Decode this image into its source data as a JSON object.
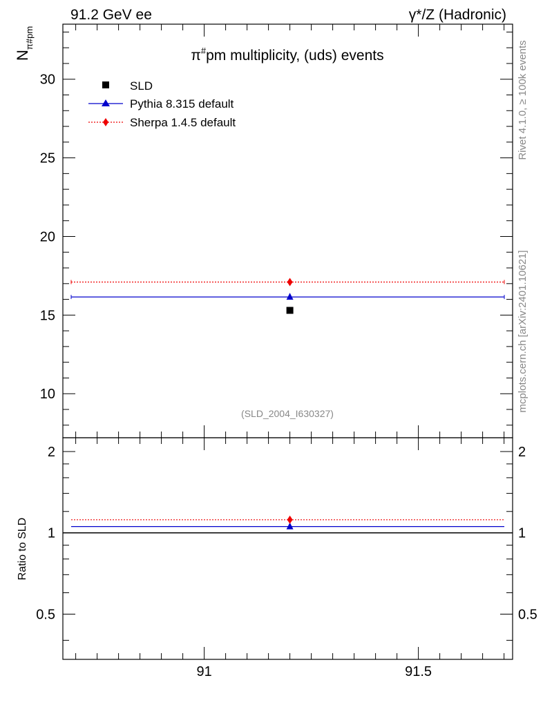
{
  "header": {
    "left": "91.2 GeV ee",
    "right": "γ*/Z (Hadronic)"
  },
  "side_labels": {
    "rivet": "Rivet 4.1.0, ≥ 100k events",
    "mcplots": "mcplots.cern.ch [arXiv:2401.10621]"
  },
  "chart_data": [
    {
      "type": "scatter",
      "panel": "main",
      "title": "π#pm multiplicity, (uds) events",
      "title_parts": {
        "pi": "π",
        "sup": "#",
        "rest": "pm multiplicity, (uds) events"
      },
      "ylabel": "N",
      "ylabel_sub": "π#pm",
      "xlim": [
        90.67,
        91.72
      ],
      "ylim": [
        7.2,
        33.5
      ],
      "yticks": [
        10,
        15,
        20,
        25,
        30
      ],
      "annotation": "(SLD_2004_I630327)",
      "legend_position": "top-left",
      "series": [
        {
          "name": "SLD",
          "marker": "square",
          "color": "#000000",
          "x": 91.2,
          "y": 15.3
        },
        {
          "name": "Pythia 8.315 default",
          "marker": "triangle",
          "color": "#0000cc",
          "line": "solid",
          "x": 91.2,
          "y": 16.15,
          "xmin": 90.67,
          "xmax": 91.72
        },
        {
          "name": "Sherpa 1.4.5 default",
          "marker": "diamond",
          "color": "#ee0000",
          "line": "dotted",
          "x": 91.2,
          "y": 17.1,
          "xmin": 90.67,
          "xmax": 91.72
        }
      ]
    },
    {
      "type": "line",
      "panel": "ratio",
      "ylabel": "Ratio to SLD",
      "xlabel": "",
      "xlim": [
        90.67,
        91.72
      ],
      "xticks": [
        91,
        91.5
      ],
      "ylim": [
        0.34,
        2.25
      ],
      "yticks": [
        0.5,
        1,
        2
      ],
      "series": [
        {
          "name": "Pythia 8.315 default",
          "color": "#0000cc",
          "y": 1.055
        },
        {
          "name": "Sherpa 1.4.5 default",
          "color": "#ee0000",
          "y": 1.118
        }
      ]
    }
  ]
}
